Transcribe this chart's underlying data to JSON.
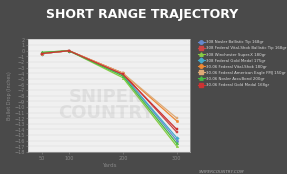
{
  "title": "SHORT RANGE TRAJECTORY",
  "xlabel": "Yards",
  "ylabel": "Bullet Drop (Inches)",
  "outer_bg_color": "#4a4a4a",
  "title_bg_color": "#555555",
  "plot_bg_color": "#f0f0f0",
  "title_color": "#ffffff",
  "title_fontsize": 9,
  "red_bar_color": "#e05050",
  "x_values": [
    50,
    100,
    200,
    300
  ],
  "ylim": [
    -18,
    2
  ],
  "series": [
    {
      "label": "308 Nosler Ballistic Tip 168gr",
      "color": "#6688cc",
      "marker": "o",
      "values": [
        -0.5,
        0.0,
        -4.2,
        -16.0
      ]
    },
    {
      "label": "308 Federal Vital-Shok Ballistic Tip 168gr",
      "color": "#cc4444",
      "marker": "s",
      "values": [
        -0.5,
        0.0,
        -4.0,
        -14.5
      ]
    },
    {
      "label": "308 Winchester Super-X 180gr",
      "color": "#88cc44",
      "marker": "^",
      "values": [
        -0.3,
        0.0,
        -4.8,
        -17.0
      ]
    },
    {
      "label": "308 Federal Gold Medal 175gr",
      "color": "#44aacc",
      "marker": "D",
      "values": [
        -0.5,
        0.0,
        -4.3,
        -15.5
      ]
    },
    {
      "label": "30-06 Federal Vital-Shok 180gr",
      "color": "#ee8833",
      "marker": "o",
      "values": [
        -0.5,
        0.0,
        -4.0,
        -12.5
      ]
    },
    {
      "label": "30-06 Federal American Eagle FMJ 150gr",
      "color": "#ddaa77",
      "marker": "s",
      "values": [
        -0.5,
        0.0,
        -4.0,
        -12.0
      ]
    },
    {
      "label": "30-06 Nosler AccuBond 200gr",
      "color": "#44bb44",
      "marker": "^",
      "values": [
        -0.3,
        0.0,
        -4.5,
        -16.5
      ]
    },
    {
      "label": "30-06 Federal Gold Medal 168gr",
      "color": "#cc3333",
      "marker": "s",
      "values": [
        -0.5,
        0.0,
        -4.2,
        -14.0
      ]
    }
  ],
  "watermark_text": "SNIPER\nCOUNTRY",
  "footer": "SNIPERCOUNTRY.COM",
  "grid_color": "#cccccc",
  "tick_color": "#888888",
  "label_color": "#888888"
}
